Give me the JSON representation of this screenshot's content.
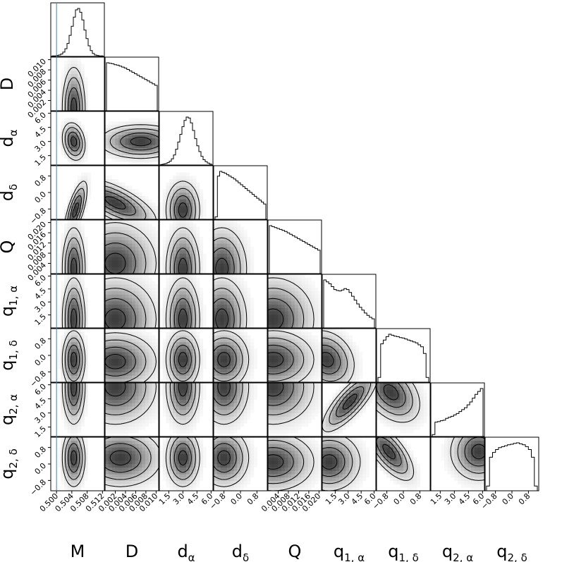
{
  "chart_data": {
    "type": "corner",
    "parameters": [
      {
        "key": "M",
        "label": "M",
        "sub": "",
        "range": [
          0.4985,
          0.5125
        ],
        "ticks": [
          "0.500",
          "0.504",
          "0.508",
          "0.512"
        ],
        "tick_values": [
          0.5,
          0.504,
          0.508,
          0.512
        ]
      },
      {
        "key": "D",
        "label": "D",
        "sub": "",
        "range": [
          0.0,
          0.0105
        ],
        "ticks": [
          "0.002",
          "0.004",
          "0.006",
          "0.008",
          "0.010"
        ],
        "tick_values": [
          0.002,
          0.004,
          0.006,
          0.008,
          0.01
        ]
      },
      {
        "key": "d_alpha",
        "label": "d",
        "sub": "α",
        "range": [
          0.5,
          6.2
        ],
        "ticks": [
          "1.5",
          "3.0",
          "4.5",
          "6.0"
        ],
        "tick_values": [
          1.5,
          3.0,
          4.5,
          6.0
        ]
      },
      {
        "key": "d_delta",
        "label": "d",
        "sub": "δ",
        "range": [
          -1.3,
          1.3
        ],
        "ticks": [
          "−0.8",
          "0.0",
          "0.8"
        ],
        "tick_values": [
          -0.8,
          0.0,
          0.8
        ]
      },
      {
        "key": "Q",
        "label": "Q",
        "sub": "",
        "range": [
          0.0,
          0.021
        ],
        "ticks": [
          "0.004",
          "0.008",
          "0.012",
          "0.016",
          "0.020"
        ],
        "tick_values": [
          0.004,
          0.008,
          0.012,
          0.016,
          0.02
        ]
      },
      {
        "key": "q1_alpha",
        "label": "q",
        "sub": "1, α",
        "range": [
          0.0,
          6.2
        ],
        "ticks": [
          "1.5",
          "3.0",
          "4.5",
          "6.0"
        ],
        "tick_values": [
          1.5,
          3.0,
          4.5,
          6.0
        ]
      },
      {
        "key": "q1_delta",
        "label": "q",
        "sub": "1, δ",
        "range": [
          -1.3,
          1.3
        ],
        "ticks": [
          "−0.8",
          "0.0",
          "0.8"
        ],
        "tick_values": [
          -0.8,
          0.0,
          0.8
        ]
      },
      {
        "key": "q2_alpha",
        "label": "q",
        "sub": "2, α",
        "range": [
          0.5,
          6.2
        ],
        "ticks": [
          "1.5",
          "3.0",
          "4.5",
          "6.0"
        ],
        "tick_values": [
          1.5,
          3.0,
          4.5,
          6.0
        ]
      },
      {
        "key": "q2_delta",
        "label": "q",
        "sub": "2, δ",
        "range": [
          -1.3,
          1.3
        ],
        "ticks": [
          "−0.8",
          "0.0",
          "0.8"
        ],
        "tick_values": [
          -0.8,
          0.0,
          0.8
        ]
      }
    ],
    "truth": {
      "parameter": "M",
      "value": 0.5,
      "color": "#4a7fa8"
    },
    "histograms": [
      [
        1,
        1,
        2,
        3,
        5,
        9,
        16,
        27,
        44,
        63,
        82,
        97,
        100,
        92,
        76,
        55,
        37,
        22,
        12,
        6,
        3,
        2,
        1,
        1
      ],
      [
        100,
        99,
        98,
        96,
        95,
        93,
        91,
        89,
        86,
        83,
        80,
        77,
        74,
        71,
        68,
        65,
        62,
        59,
        56,
        53
      ],
      [
        1,
        2,
        3,
        5,
        8,
        13,
        21,
        33,
        48,
        64,
        80,
        93,
        100,
        98,
        88,
        72,
        55,
        40,
        28,
        18,
        11,
        7,
        4,
        2
      ],
      [
        5,
        90,
        100,
        98,
        96,
        93,
        90,
        87,
        84,
        80,
        76,
        72,
        68,
        64,
        60,
        56,
        52,
        48,
        44,
        40,
        36,
        32
      ],
      [
        100,
        98,
        96,
        94,
        92,
        90,
        88,
        85,
        82,
        79,
        76,
        73,
        70,
        67,
        64,
        61,
        58,
        55,
        52,
        49
      ],
      [
        100,
        96,
        92,
        86,
        80,
        78,
        77,
        79,
        82,
        80,
        74,
        66,
        58,
        50,
        43,
        37,
        31,
        26,
        22,
        19
      ],
      [
        10,
        80,
        88,
        95,
        100,
        98,
        96,
        95,
        93,
        92,
        90,
        88,
        86,
        84,
        82,
        78,
        74,
        60,
        10
      ],
      [
        4,
        30,
        31,
        33,
        34,
        38,
        40,
        42,
        45,
        48,
        52,
        56,
        60,
        66,
        72,
        80,
        88,
        94,
        100
      ],
      [
        10,
        70,
        80,
        86,
        90,
        92,
        94,
        96,
        97,
        99,
        100,
        98,
        96,
        92,
        86,
        70,
        10
      ]
    ],
    "density_2d": [
      {
        "row": "D",
        "col": "M",
        "peak": [
          0.5045,
          0.0005
        ],
        "spread": [
          0.0015,
          0.004
        ],
        "corr": 0.0
      },
      {
        "row": "d_alpha",
        "col": "M",
        "peak": [
          0.5045,
          3.0
        ],
        "spread": [
          0.0015,
          1.0
        ],
        "corr": -0.2
      },
      {
        "row": "d_alpha",
        "col": "D",
        "peak": [
          0.007,
          3.0
        ],
        "spread": [
          0.004,
          0.9
        ],
        "corr": 0.0
      },
      {
        "row": "d_delta",
        "col": "M",
        "peak": [
          0.505,
          -0.85
        ],
        "spread": [
          0.0015,
          0.7
        ],
        "corr": 0.7
      },
      {
        "row": "d_delta",
        "col": "D",
        "peak": [
          0.002,
          -0.5
        ],
        "spread": [
          0.004,
          0.6
        ],
        "corr": -0.7
      },
      {
        "row": "d_delta",
        "col": "d_alpha",
        "peak": [
          3.0,
          -0.85
        ],
        "spread": [
          0.9,
          0.7
        ],
        "corr": 0.0
      },
      {
        "row": "Q",
        "col": "M",
        "peak": [
          0.5045,
          0.002
        ],
        "spread": [
          0.0015,
          0.008
        ],
        "corr": 0.0
      },
      {
        "row": "Q",
        "col": "D",
        "peak": [
          0.002,
          0.004
        ],
        "spread": [
          0.004,
          0.008
        ],
        "corr": 0.0
      },
      {
        "row": "Q",
        "col": "d_alpha",
        "peak": [
          3.0,
          0.002
        ],
        "spread": [
          0.9,
          0.008
        ],
        "corr": 0.0
      },
      {
        "row": "Q",
        "col": "d_delta",
        "peak": [
          -0.9,
          0.002
        ],
        "spread": [
          0.6,
          0.008
        ],
        "corr": 0.0
      },
      {
        "row": "q1_alpha",
        "col": "M",
        "peak": [
          0.5045,
          1.0
        ],
        "spread": [
          0.0015,
          2.4
        ],
        "corr": 0.0
      },
      {
        "row": "q1_alpha",
        "col": "D",
        "peak": [
          0.002,
          1.0
        ],
        "spread": [
          0.004,
          2.4
        ],
        "corr": 0.0
      },
      {
        "row": "q1_alpha",
        "col": "d_alpha",
        "peak": [
          3.0,
          1.0
        ],
        "spread": [
          0.9,
          2.4
        ],
        "corr": 0.0
      },
      {
        "row": "q1_alpha",
        "col": "d_delta",
        "peak": [
          -0.9,
          1.0
        ],
        "spread": [
          0.6,
          2.4
        ],
        "corr": 0.0
      },
      {
        "row": "q1_alpha",
        "col": "Q",
        "peak": [
          0.002,
          1.0
        ],
        "spread": [
          0.008,
          2.4
        ],
        "corr": 0.0
      },
      {
        "row": "q1_delta",
        "col": "M",
        "peak": [
          0.5045,
          -0.2
        ],
        "spread": [
          0.0015,
          0.7
        ],
        "corr": 0.0
      },
      {
        "row": "q1_delta",
        "col": "D",
        "peak": [
          0.002,
          -0.3
        ],
        "spread": [
          0.004,
          0.7
        ],
        "corr": 0.0
      },
      {
        "row": "q1_delta",
        "col": "d_alpha",
        "peak": [
          3.0,
          -0.2
        ],
        "spread": [
          0.9,
          0.7
        ],
        "corr": 0.0
      },
      {
        "row": "q1_delta",
        "col": "d_delta",
        "peak": [
          -0.8,
          -0.2
        ],
        "spread": [
          0.6,
          0.7
        ],
        "corr": 0.0
      },
      {
        "row": "q1_delta",
        "col": "Q",
        "peak": [
          0.002,
          -0.2
        ],
        "spread": [
          0.008,
          0.7
        ],
        "corr": 0.0
      },
      {
        "row": "q1_delta",
        "col": "q1_alpha",
        "peak": [
          0.5,
          -0.2
        ],
        "spread": [
          1.6,
          0.7
        ],
        "corr": -0.2
      },
      {
        "row": "q2_alpha",
        "col": "M",
        "peak": [
          0.5045,
          5.8
        ],
        "spread": [
          0.0015,
          2.0
        ],
        "corr": 0.0
      },
      {
        "row": "q2_alpha",
        "col": "D",
        "peak": [
          0.002,
          5.8
        ],
        "spread": [
          0.004,
          2.0
        ],
        "corr": 0.0
      },
      {
        "row": "q2_alpha",
        "col": "d_alpha",
        "peak": [
          3.0,
          5.8
        ],
        "spread": [
          0.9,
          2.0
        ],
        "corr": 0.0
      },
      {
        "row": "q2_alpha",
        "col": "d_delta",
        "peak": [
          -0.8,
          5.8
        ],
        "spread": [
          0.6,
          2.0
        ],
        "corr": 0.0
      },
      {
        "row": "q2_alpha",
        "col": "Q",
        "peak": [
          0.002,
          5.8
        ],
        "spread": [
          0.008,
          2.0
        ],
        "corr": 0.0
      },
      {
        "row": "q2_alpha",
        "col": "q1_alpha",
        "peak": [
          3.2,
          4.2
        ],
        "spread": [
          1.6,
          1.6
        ],
        "corr": 0.8
      },
      {
        "row": "q2_alpha",
        "col": "q1_delta",
        "peak": [
          -0.6,
          5.2
        ],
        "spread": [
          0.7,
          1.6
        ],
        "corr": -0.4
      },
      {
        "row": "q2_delta",
        "col": "M",
        "peak": [
          0.5045,
          0.3
        ],
        "spread": [
          0.0015,
          0.7
        ],
        "corr": 0.0
      },
      {
        "row": "q2_delta",
        "col": "D",
        "peak": [
          0.003,
          0.3
        ],
        "spread": [
          0.004,
          0.7
        ],
        "corr": 0.0
      },
      {
        "row": "q2_delta",
        "col": "d_alpha",
        "peak": [
          3.0,
          0.3
        ],
        "spread": [
          0.9,
          0.7
        ],
        "corr": 0.0
      },
      {
        "row": "q2_delta",
        "col": "d_delta",
        "peak": [
          -0.8,
          0.3
        ],
        "spread": [
          0.6,
          0.7
        ],
        "corr": 0.0
      },
      {
        "row": "q2_delta",
        "col": "Q",
        "peak": [
          0.002,
          0.1
        ],
        "spread": [
          0.008,
          0.7
        ],
        "corr": 0.0
      },
      {
        "row": "q2_delta",
        "col": "q1_alpha",
        "peak": [
          0.8,
          0.1
        ],
        "spread": [
          1.8,
          0.7
        ],
        "corr": 0.0
      },
      {
        "row": "q2_delta",
        "col": "q1_delta",
        "peak": [
          -0.7,
          0.6
        ],
        "spread": [
          0.6,
          0.7
        ],
        "corr": -0.7
      },
      {
        "row": "q2_delta",
        "col": "q2_alpha",
        "peak": [
          5.6,
          0.6
        ],
        "spread": [
          1.5,
          0.7
        ],
        "corr": 0.0
      }
    ],
    "grid": false,
    "legend": "none"
  }
}
